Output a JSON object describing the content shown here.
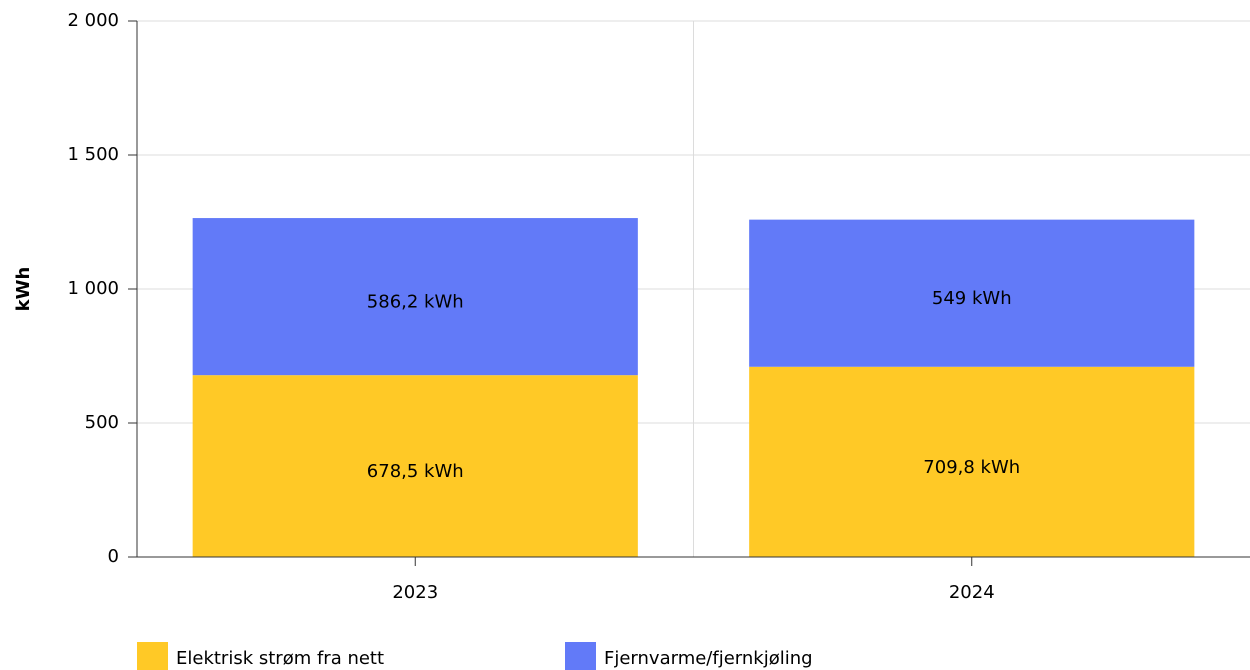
{
  "chart_data": {
    "type": "stacked_bar",
    "ylabel": "kWh",
    "categories": [
      "2023",
      "2024"
    ],
    "series": [
      {
        "name": "Elektrisk strøm fra nett",
        "color": "#ffc926",
        "values": [
          678.5,
          709.8
        ],
        "value_labels": [
          "678,5 kWh",
          "709,8 kWh"
        ]
      },
      {
        "name": "Fjernvarme/fjernkjøling",
        "color": "#627af8",
        "values": [
          586.2,
          549
        ],
        "value_labels": [
          "586,2 kWh",
          "549 kWh"
        ]
      }
    ],
    "ylim": [
      0,
      2000
    ],
    "yticks": [
      0,
      500,
      {
        "value": 1000,
        "label": "1 000"
      },
      {
        "value": 1500,
        "label": "1 500"
      },
      {
        "value": 2000,
        "label": "2 000"
      }
    ],
    "grid": true
  }
}
